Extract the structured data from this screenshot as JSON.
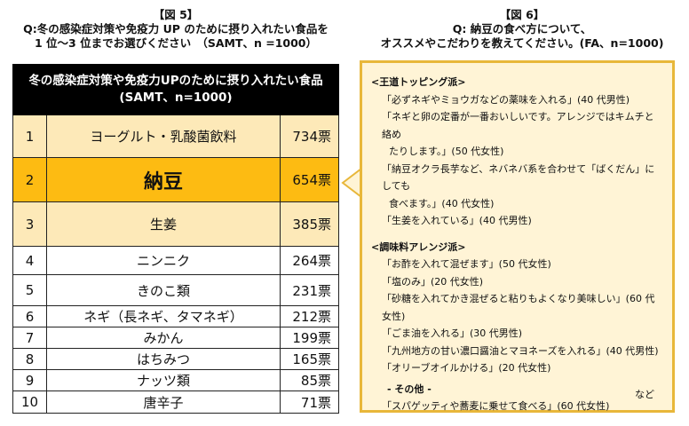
{
  "fig5": {
    "label": "【図 5】",
    "q1": "Q:冬の感染症対策や免疫力 UP のために摂り入れたい食品を",
    "q2": "1 位～3 位までお選びください　（SAMT、n =1000）"
  },
  "fig6": {
    "label": "【図 6】",
    "q1": "Q:  納豆の食べ方について、",
    "q2": "オススメやこだわりを教えてください。(FA、n=1000)"
  },
  "chart_data": {
    "type": "table",
    "title": "冬の感染症対策や免疫力UPのために摂り入れたい食品",
    "subtitle": "(SAMT、n=1000)",
    "rows": [
      {
        "rank": "1",
        "item": "ヨーグルト・乳酸菌飲料",
        "votes": "734票",
        "value": 734
      },
      {
        "rank": "2",
        "item": "納豆",
        "votes": "654票",
        "value": 654
      },
      {
        "rank": "3",
        "item": "生姜",
        "votes": "385票",
        "value": 385
      },
      {
        "rank": "4",
        "item": "ニンニク",
        "votes": "264票",
        "value": 264
      },
      {
        "rank": "5",
        "item": "きのこ類",
        "votes": "231票",
        "value": 231
      },
      {
        "rank": "6",
        "item": "ネギ（長ネギ、タマネギ）",
        "votes": "212票",
        "value": 212
      },
      {
        "rank": "7",
        "item": "みかん",
        "votes": "199票",
        "value": 199
      },
      {
        "rank": "8",
        "item": "はちみつ",
        "votes": "165票",
        "value": 165
      },
      {
        "rank": "9",
        "item": "ナッツ類",
        "votes": "85票",
        "value": 85
      },
      {
        "rank": "10",
        "item": "唐辛子",
        "votes": "71票",
        "value": 71
      }
    ]
  },
  "colors": {
    "header": "#000000",
    "top3": "#fde9b8",
    "highlight": "#fdbb12",
    "box_bg": "#fff4d6",
    "box_border": "#e8b73a"
  },
  "answers": {
    "g1": {
      "heading": "<王道トッピング派>",
      "items": [
        [
          "「必ずネギやミョウガなどの薬味を入れる」(40 代男性)"
        ],
        [
          "「ネギと卵の定番が一番おいしいです。アレンジではキムチと絡め",
          "たりします。」(50 代女性)"
        ],
        [
          "「納豆オクラ長芋など、ネバネバ系を合わせて「ばくだん」にしても",
          "食べます。」(40 代女性)"
        ],
        [
          "「生姜を入れている」(40 代男性)"
        ]
      ]
    },
    "g2": {
      "heading": "<調味料アレンジ派>",
      "items": [
        "「お酢を入れて混ぜます」(50 代女性)",
        "「塩のみ」(20 代女性)",
        "「砂糖を入れてかき混ぜると粘りもよくなり美味しい」(60 代女性)",
        "「ごま油を入れる」(30 代男性)",
        "「九州地方の甘い濃口醤油とマヨネーズを入れる」(40 代男性)",
        "「オリーブオイルかける」(20 代女性)"
      ]
    },
    "other": {
      "heading": "- その他 -",
      "items": [
        "「スパゲッティや蕎麦に乗せて食べる」(60 代女性)"
      ]
    },
    "etc": "など"
  }
}
